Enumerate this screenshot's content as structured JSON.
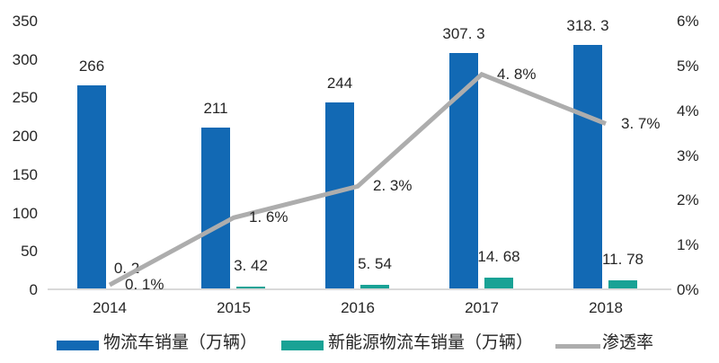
{
  "chart_data": {
    "type": "bar+line",
    "title": "",
    "categories": [
      "2014",
      "2015",
      "2016",
      "2017",
      "2018"
    ],
    "series": [
      {
        "name": "物流车销量（万辆）",
        "type": "bar",
        "axis": "left",
        "color": "#1269B4",
        "values": [
          266,
          211,
          244,
          307.3,
          318.3
        ],
        "value_labels": [
          "266",
          "211",
          "244",
          "307. 3",
          "318. 3"
        ]
      },
      {
        "name": "新能源物流车销量（万辆）",
        "type": "bar",
        "axis": "left",
        "color": "#19A295",
        "values": [
          0.2,
          3.42,
          5.54,
          14.68,
          11.78
        ],
        "value_labels": [
          "0. 2",
          "3. 42",
          "5. 54",
          "14. 68",
          "11. 78"
        ]
      },
      {
        "name": "渗透率",
        "type": "line",
        "axis": "right",
        "color": "#ADADAD",
        "values": [
          0.1,
          1.6,
          2.3,
          4.8,
          3.7
        ],
        "value_labels": [
          "0. 1%",
          "1. 6%",
          "2. 3%",
          "4. 8%",
          "3. 7%"
        ]
      }
    ],
    "left_axis": {
      "min": 0,
      "max": 350,
      "step": 50,
      "tick_labels": [
        "350",
        "300",
        "250",
        "200",
        "150",
        "100",
        "50",
        "0"
      ]
    },
    "right_axis": {
      "min": 0,
      "max": 6,
      "step": 1,
      "tick_labels": [
        "6%",
        "5%",
        "4%",
        "3%",
        "2%",
        "1%",
        "0%"
      ]
    },
    "grid": false,
    "legend_position": "bottom",
    "axis_line_color": "#D9D9D9",
    "text_color": "#262626",
    "background": "#FFFFFF"
  }
}
